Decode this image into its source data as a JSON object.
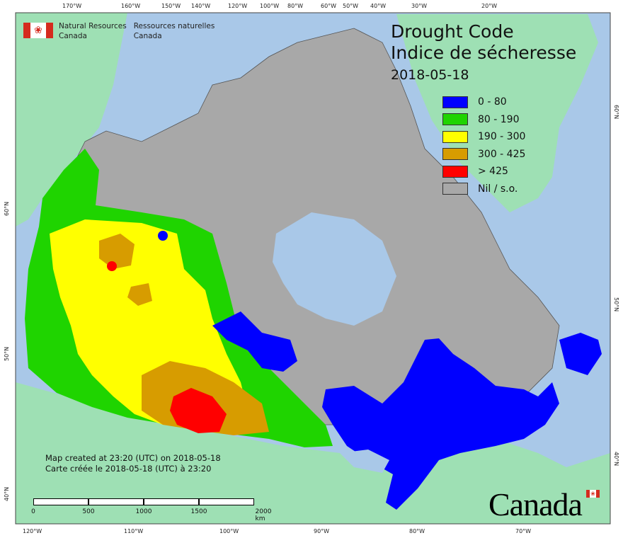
{
  "map": {
    "title_en": "Drought Code",
    "title_fr": "Indice de sécheresse",
    "date": "2018-05-18",
    "colors": {
      "ocean": "#a9c8e8",
      "land_outside": "#9ee0b4",
      "nodata": "#a8a8a8",
      "border": "#555555"
    },
    "legend": [
      {
        "label": "0 - 80",
        "color": "#0000ff"
      },
      {
        "label": "80 - 190",
        "color": "#1fd400"
      },
      {
        "label": "190 - 300",
        "color": "#ffff00"
      },
      {
        "label": "300 - 425",
        "color": "#d79c00"
      },
      {
        "label": "> 425",
        "color": "#ff0000"
      },
      {
        "label": "Nil / s.o.",
        "color": "#a8a8a8"
      }
    ],
    "longitude_labels_top": [
      "170°W",
      "160°W",
      "150°W",
      "140°W",
      "120°W",
      "100°W",
      "80°W",
      "60°W",
      "50°W",
      "40°W",
      "30°W",
      "20°W"
    ],
    "longitude_labels_bottom": [
      "120°W",
      "110°W",
      "100°W",
      "90°W",
      "80°W",
      "70°W"
    ],
    "latitude_labels_left": [
      "60°N",
      "50°N",
      "40°N"
    ],
    "latitude_labels_right": [
      "60°N",
      "50°N",
      "40°N"
    ],
    "agency": {
      "en_line1": "Natural Resources",
      "en_line2": "Canada",
      "fr_line1": "Ressources naturelles",
      "fr_line2": "Canada",
      "flag_icon": "canada-flag-icon"
    },
    "credits": {
      "line_en": "Map created at 23:20 (UTC) on 2018-05-18",
      "line_fr": "Carte créée le 2018-05-18 (UTC) à 23:20"
    },
    "scalebar": {
      "labels": [
        "0",
        "500",
        "1000",
        "1500",
        "2000 km"
      ]
    },
    "wordmark": "Canada"
  }
}
